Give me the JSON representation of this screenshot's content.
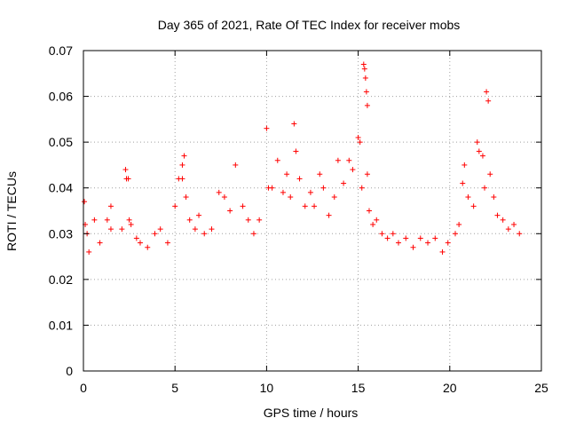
{
  "chart_data": {
    "type": "scatter",
    "title": "Day 365 of 2021, Rate Of TEC Index for receiver mobs",
    "xlabel": "GPS time / hours",
    "ylabel": "ROTI / TECUs",
    "xlim": [
      0,
      25
    ],
    "ylim": [
      0,
      0.07
    ],
    "x_ticks": [
      0,
      5,
      10,
      15,
      20,
      25
    ],
    "y_ticks": [
      0,
      0.01,
      0.02,
      0.03,
      0.04,
      0.05,
      0.06,
      0.07
    ],
    "x_tick_labels": [
      "0",
      "5",
      "10",
      "15",
      "20",
      "25"
    ],
    "y_tick_labels": [
      "0",
      "0.01",
      "0.02",
      "0.03",
      "0.04",
      "0.05",
      "0.06",
      "0.07"
    ],
    "grid": true,
    "marker": "plus",
    "color": "#ff0000",
    "series": [
      {
        "points": [
          [
            0.05,
            0.037
          ],
          [
            0.1,
            0.032
          ],
          [
            0.2,
            0.03
          ],
          [
            0.3,
            0.026
          ],
          [
            0.6,
            0.033
          ],
          [
            0.9,
            0.028
          ],
          [
            1.3,
            0.033
          ],
          [
            1.5,
            0.031
          ],
          [
            1.5,
            0.036
          ],
          [
            2.1,
            0.031
          ],
          [
            2.3,
            0.044
          ],
          [
            2.35,
            0.042
          ],
          [
            2.45,
            0.042
          ],
          [
            2.5,
            0.033
          ],
          [
            2.6,
            0.032
          ],
          [
            2.9,
            0.029
          ],
          [
            3.1,
            0.028
          ],
          [
            3.5,
            0.027
          ],
          [
            3.9,
            0.03
          ],
          [
            4.2,
            0.031
          ],
          [
            4.6,
            0.028
          ],
          [
            5.0,
            0.036
          ],
          [
            5.2,
            0.042
          ],
          [
            5.4,
            0.042
          ],
          [
            5.4,
            0.045
          ],
          [
            5.5,
            0.047
          ],
          [
            5.6,
            0.038
          ],
          [
            5.8,
            0.033
          ],
          [
            6.1,
            0.031
          ],
          [
            6.3,
            0.034
          ],
          [
            6.6,
            0.03
          ],
          [
            7.0,
            0.031
          ],
          [
            7.4,
            0.039
          ],
          [
            7.7,
            0.038
          ],
          [
            8.0,
            0.035
          ],
          [
            8.3,
            0.045
          ],
          [
            8.7,
            0.036
          ],
          [
            9.0,
            0.033
          ],
          [
            9.3,
            0.03
          ],
          [
            9.6,
            0.033
          ],
          [
            10.0,
            0.053
          ],
          [
            10.1,
            0.04
          ],
          [
            10.3,
            0.04
          ],
          [
            10.6,
            0.046
          ],
          [
            10.9,
            0.039
          ],
          [
            11.1,
            0.043
          ],
          [
            11.3,
            0.038
          ],
          [
            11.5,
            0.054
          ],
          [
            11.6,
            0.048
          ],
          [
            11.8,
            0.042
          ],
          [
            12.1,
            0.036
          ],
          [
            12.4,
            0.039
          ],
          [
            12.6,
            0.036
          ],
          [
            12.9,
            0.043
          ],
          [
            13.1,
            0.04
          ],
          [
            13.4,
            0.034
          ],
          [
            13.7,
            0.038
          ],
          [
            13.9,
            0.046
          ],
          [
            14.2,
            0.041
          ],
          [
            14.5,
            0.046
          ],
          [
            14.7,
            0.044
          ],
          [
            15.0,
            0.051
          ],
          [
            15.1,
            0.05
          ],
          [
            15.2,
            0.04
          ],
          [
            15.3,
            0.067
          ],
          [
            15.35,
            0.066
          ],
          [
            15.4,
            0.064
          ],
          [
            15.45,
            0.061
          ],
          [
            15.5,
            0.058
          ],
          [
            15.5,
            0.043
          ],
          [
            15.6,
            0.035
          ],
          [
            15.8,
            0.032
          ],
          [
            16.0,
            0.033
          ],
          [
            16.3,
            0.03
          ],
          [
            16.6,
            0.029
          ],
          [
            16.9,
            0.03
          ],
          [
            17.2,
            0.028
          ],
          [
            17.6,
            0.029
          ],
          [
            18.0,
            0.027
          ],
          [
            18.4,
            0.029
          ],
          [
            18.8,
            0.028
          ],
          [
            19.2,
            0.029
          ],
          [
            19.6,
            0.026
          ],
          [
            19.9,
            0.028
          ],
          [
            20.3,
            0.03
          ],
          [
            20.5,
            0.032
          ],
          [
            20.7,
            0.041
          ],
          [
            20.8,
            0.045
          ],
          [
            21.0,
            0.038
          ],
          [
            21.3,
            0.036
          ],
          [
            21.5,
            0.05
          ],
          [
            21.6,
            0.048
          ],
          [
            21.8,
            0.047
          ],
          [
            21.9,
            0.04
          ],
          [
            22.0,
            0.061
          ],
          [
            22.1,
            0.059
          ],
          [
            22.2,
            0.043
          ],
          [
            22.4,
            0.038
          ],
          [
            22.6,
            0.034
          ],
          [
            22.9,
            0.033
          ],
          [
            23.2,
            0.031
          ],
          [
            23.5,
            0.032
          ],
          [
            23.8,
            0.03
          ]
        ]
      }
    ]
  }
}
